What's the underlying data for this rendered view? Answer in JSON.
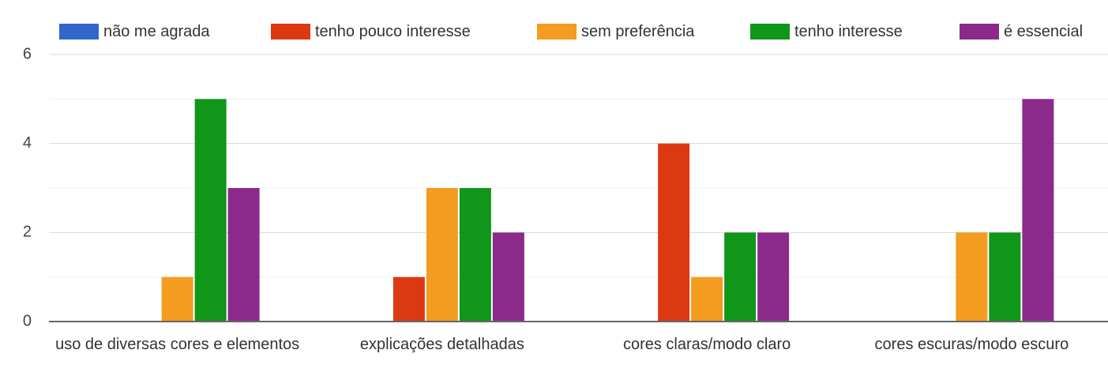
{
  "chart_data": {
    "type": "bar",
    "categories": [
      "uso de diversas cores e elementos",
      "explicações detalhadas",
      "cores claras/modo claro",
      "cores escuras/modo escuro"
    ],
    "series": [
      {
        "name": "não me agrada",
        "color": "#3366cc",
        "values": [
          0,
          0,
          0,
          0
        ]
      },
      {
        "name": "tenho pouco interesse",
        "color": "#dc3912",
        "values": [
          0,
          1,
          4,
          0
        ]
      },
      {
        "name": "sem preferência",
        "color": "#f39c1f",
        "values": [
          1,
          3,
          1,
          2
        ]
      },
      {
        "name": "tenho interesse",
        "color": "#109618",
        "values": [
          5,
          3,
          2,
          2
        ]
      },
      {
        "name": "é essencial",
        "color": "#8b2a8b",
        "values": [
          3,
          2,
          2,
          5
        ]
      }
    ],
    "ylim": [
      0,
      6
    ],
    "yticks": [
      0,
      2,
      4,
      6
    ],
    "grid": true
  }
}
